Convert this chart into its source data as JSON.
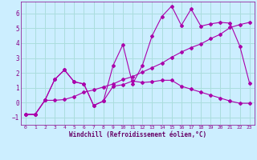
{
  "background_color": "#cceeff",
  "grid_color": "#aadddd",
  "line_color": "#aa00aa",
  "xlabel": "Windchill (Refroidissement éolien,°C)",
  "xlim": [
    -0.5,
    23.5
  ],
  "ylim": [
    -1.5,
    6.8
  ],
  "yticks": [
    -1,
    0,
    1,
    2,
    3,
    4,
    5,
    6
  ],
  "xticks": [
    0,
    1,
    2,
    3,
    4,
    5,
    6,
    7,
    8,
    9,
    10,
    11,
    12,
    13,
    14,
    15,
    16,
    17,
    18,
    19,
    20,
    21,
    22,
    23
  ],
  "line1_x": [
    0,
    1,
    2,
    3,
    4,
    5,
    6,
    7,
    8,
    9,
    10,
    11,
    12,
    13,
    14,
    15,
    16,
    17,
    18,
    19,
    20,
    21,
    22,
    23
  ],
  "line1_y": [
    -0.8,
    -0.8,
    0.15,
    1.55,
    2.2,
    1.4,
    1.25,
    -0.2,
    0.1,
    2.5,
    3.9,
    1.25,
    2.5,
    4.5,
    5.8,
    6.5,
    5.2,
    6.3,
    5.15,
    5.3,
    5.4,
    5.35,
    3.8,
    1.3
  ],
  "line2_x": [
    0,
    1,
    2,
    3,
    4,
    5,
    6,
    7,
    8,
    9,
    10,
    11,
    12,
    13,
    14,
    15,
    16,
    17,
    18,
    19,
    20,
    21,
    22,
    23
  ],
  "line2_y": [
    -0.8,
    -0.8,
    0.15,
    1.55,
    2.2,
    1.4,
    1.25,
    -0.2,
    0.1,
    1.1,
    1.2,
    1.45,
    1.35,
    1.4,
    1.5,
    1.5,
    1.1,
    0.9,
    0.7,
    0.5,
    0.3,
    0.1,
    -0.05,
    -0.05
  ],
  "line3_x": [
    0,
    1,
    2,
    3,
    4,
    5,
    6,
    7,
    8,
    9,
    10,
    11,
    12,
    13,
    14,
    15,
    16,
    17,
    18,
    19,
    20,
    21,
    22,
    23
  ],
  "line3_y": [
    -0.8,
    -0.8,
    0.15,
    0.15,
    0.2,
    0.4,
    0.7,
    0.85,
    1.05,
    1.25,
    1.55,
    1.75,
    2.05,
    2.35,
    2.65,
    3.05,
    3.4,
    3.7,
    3.95,
    4.3,
    4.6,
    5.05,
    5.25,
    5.4
  ]
}
